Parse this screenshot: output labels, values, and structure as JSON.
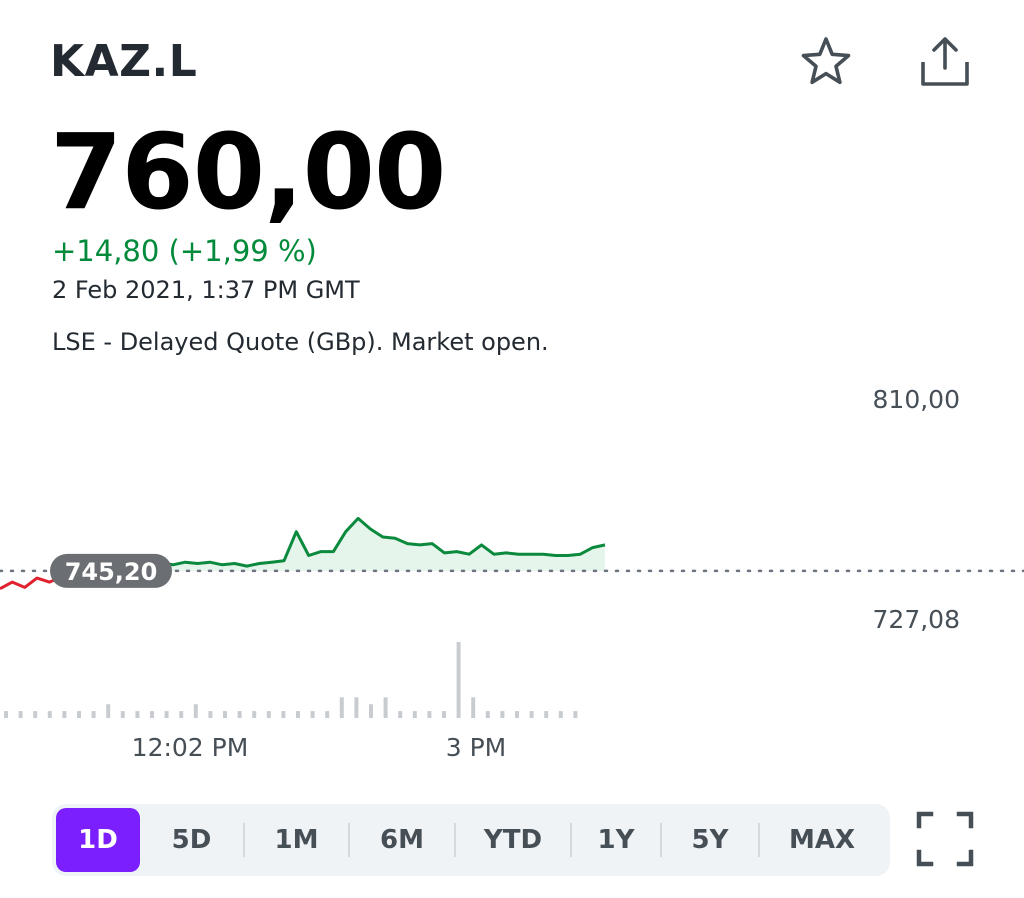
{
  "header": {
    "ticker": "KAZ.L",
    "star_icon": "star-outline-icon",
    "share_icon": "share-icon"
  },
  "quote": {
    "price": "760,00",
    "change": "+14,80 (+1,99 %)",
    "timestamp": "2 Feb 2021, 1:37 PM GMT",
    "exchange_note": "LSE - Delayed Quote (GBp). Market open.",
    "change_color": "#008a3a"
  },
  "chart": {
    "y_high_label": "810,00",
    "y_low_label": "727,08",
    "previous_close_label": "745,20",
    "x_labels": [
      "12:02 PM",
      "3 PM"
    ],
    "colors": {
      "up": "#0b8a3e",
      "down": "#e0202f",
      "fill": "#e6f5ec",
      "volume": "#c8ccd1",
      "baseline": "#6b7280"
    }
  },
  "chart_data": {
    "type": "line",
    "title": "",
    "xlabel": "",
    "ylabel": "",
    "ylim": [
      727.08,
      810.0
    ],
    "reference_line": {
      "label": "previous close",
      "value": 745.2
    },
    "x_ticks": [
      "12:02 PM",
      "3 PM"
    ],
    "series": [
      {
        "name": "",
        "values": [
          738.5,
          741.0,
          739.0,
          742.5,
          741.0,
          743.0,
          742.5,
          744.5,
          744.0,
          745.5,
          745.5,
          747.0,
          748.0,
          748.5,
          747.5,
          748.5,
          748.0,
          748.5,
          747.5,
          748.0,
          747.0,
          748.0,
          748.5,
          749.0,
          760.0,
          751.0,
          752.5,
          752.5,
          760.0,
          765.0,
          761.0,
          758.0,
          757.5,
          755.5,
          755.0,
          755.5,
          752.0,
          752.5,
          751.5,
          755.0,
          751.5,
          752.0,
          751.5,
          751.5,
          751.5,
          751.0,
          751.0,
          751.5,
          754.0,
          755.0
        ]
      }
    ],
    "volume": [
      1,
      1,
      1,
      1,
      1,
      1,
      1,
      2,
      1,
      1,
      1,
      1,
      1,
      2,
      1,
      1,
      1,
      1,
      1,
      1,
      1,
      1,
      1,
      3,
      3,
      2,
      3,
      1,
      1,
      1,
      1,
      11,
      3,
      1,
      1,
      1,
      1,
      1,
      1,
      1
    ]
  },
  "ranges": {
    "items": [
      "1D",
      "5D",
      "1M",
      "6M",
      "YTD",
      "1Y",
      "5Y",
      "MAX"
    ],
    "active": "1D",
    "active_color": "#7b1fff",
    "fullscreen_icon": "fullscreen-icon"
  }
}
